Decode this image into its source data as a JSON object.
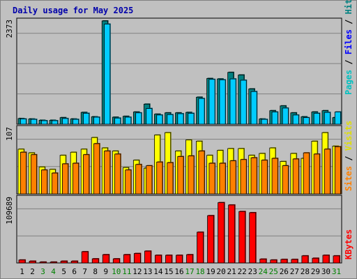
{
  "chart_data": {
    "type": "bar",
    "title": "Daily usage for May 2025",
    "categories": [
      "1",
      "2",
      "3",
      "4",
      "5",
      "6",
      "7",
      "8",
      "9",
      "10",
      "11",
      "12",
      "13",
      "14",
      "15",
      "16",
      "17",
      "18",
      "19",
      "20",
      "21",
      "22",
      "23",
      "24",
      "25",
      "26",
      "27",
      "28",
      "29",
      "30",
      "31"
    ],
    "weekend_days": [
      "3",
      "4",
      "10",
      "11",
      "17",
      "18",
      "24",
      "25",
      "31"
    ],
    "colors": {
      "hits": "#008080",
      "files": "#0000ff",
      "pages": "#00ffff",
      "visits": "#ffff00",
      "sites": "#ff8000",
      "kbytes": "#ff0000",
      "title": "#0000aa",
      "weekday_label": "#000000",
      "weekend_label": "#008000",
      "panel_bg": "#c0c0c0"
    },
    "panels": [
      {
        "name": "hits-files-pages",
        "max_label": "2373",
        "ylim": [
          0,
          2373
        ],
        "legend": [
          {
            "text": "Pages",
            "color": "#00c0c0"
          },
          {
            "text": "Files",
            "color": "#0000ff"
          },
          {
            "text": "Hits",
            "color": "#008080"
          }
        ],
        "series": [
          {
            "name": "Hits",
            "color": "#008080",
            "values": [
              130,
              120,
              90,
              90,
              150,
              120,
              270,
              170,
              2373,
              160,
              180,
              280,
              460,
              230,
              260,
              260,
              270,
              620,
              1050,
              1040,
              1190,
              1130,
              810,
              120,
              310,
              420,
              260,
              170,
              280,
              310,
              150
            ]
          },
          {
            "name": "Pages",
            "color": "#00ccff",
            "values": [
              120,
              110,
              80,
              80,
              130,
              110,
              250,
              160,
              2300,
              140,
              160,
              260,
              360,
              210,
              220,
              240,
              250,
              590,
              1030,
              1020,
              1040,
              1010,
              750,
              110,
              280,
              370,
              210,
              150,
              250,
              270,
              280
            ]
          }
        ]
      },
      {
        "name": "visits-sites",
        "max_label": "107",
        "ylim": [
          0,
          107
        ],
        "legend": [
          {
            "text": "Sites",
            "color": "#ff8000"
          },
          {
            "text": "Visits",
            "color": "#e0e000"
          }
        ],
        "series": [
          {
            "name": "Visits",
            "color": "#ffff00",
            "values": [
              73,
              67,
              44,
              40,
              63,
              68,
              73,
              92,
              75,
              70,
              43,
              55,
              42,
              96,
              100,
              70,
              88,
              86,
              63,
              71,
              74,
              74,
              63,
              66,
              75,
              53,
              66,
              58,
              86,
              100,
              78
            ]
          },
          {
            "name": "Sites",
            "color": "#ff8000",
            "values": [
              68,
              64,
              39,
              34,
              49,
              50,
              64,
              82,
              70,
              65,
              39,
              48,
              46,
              52,
              51,
              61,
              62,
              70,
              50,
              50,
              54,
              56,
              59,
              55,
              58,
              46,
              57,
              67,
              65,
              73,
              77
            ]
          }
        ]
      },
      {
        "name": "kbytes",
        "max_label": "109689",
        "ylim": [
          0,
          109689
        ],
        "legend": [
          {
            "text": "KBytes",
            "color": "#ff0000"
          }
        ],
        "series": [
          {
            "name": "KBytes",
            "color": "#ff0000",
            "values": [
              5000,
              3000,
              1500,
              1500,
              3000,
              3000,
              19000,
              7000,
              14000,
              7000,
              14000,
              16000,
              20000,
              13000,
              13000,
              13000,
              14000,
              52000,
              80000,
              102000,
              98000,
              87000,
              85000,
              6500,
              5000,
              6000,
              6000,
              12000,
              8000,
              13000,
              12000
            ]
          }
        ]
      }
    ]
  }
}
